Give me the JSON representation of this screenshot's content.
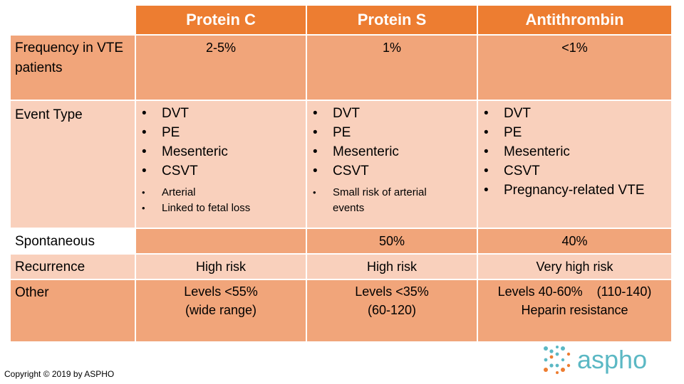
{
  "headers": [
    "Protein C",
    "Protein S",
    "Antithrombin"
  ],
  "rows": {
    "frequency": {
      "label": "Frequency in VTE patients",
      "values": [
        "2-5%",
        "1%",
        "<1%"
      ]
    },
    "event_type": {
      "label": "Event Type",
      "protein_c": {
        "main": [
          "DVT",
          "PE",
          "Mesenteric",
          "CSVT"
        ],
        "minor": [
          "Arterial",
          "Linked to fetal loss"
        ]
      },
      "protein_s": {
        "main": [
          "DVT",
          "PE",
          "Mesenteric",
          "CSVT"
        ],
        "minor": [
          "Small risk of arterial events"
        ]
      },
      "antithrombin": {
        "main": [
          "DVT",
          "PE",
          "Mesenteric",
          "CSVT",
          "Pregnancy-related VTE"
        ]
      }
    },
    "spontaneous": {
      "label": "Spontaneous",
      "values": [
        "",
        "50%",
        "40%"
      ]
    },
    "recurrence": {
      "label": "Recurrence",
      "values": [
        "High risk",
        "High risk",
        "Very high risk"
      ]
    },
    "other": {
      "label": "Other",
      "values": [
        [
          "Levels <55%",
          "(wide range)"
        ],
        [
          "Levels <35%",
          "(60-120)"
        ],
        [
          "Levels 40-60%    (110-140)",
          "Heparin resistance"
        ]
      ]
    }
  },
  "footer": {
    "copyright": "Copyright © 2019 by ASPHO",
    "logo_text": "aspho"
  },
  "colors": {
    "header": "#ed7d31",
    "dark_row": "#f1a57a",
    "light_row": "#f9d0bc",
    "logo": "#5bb8c4"
  }
}
